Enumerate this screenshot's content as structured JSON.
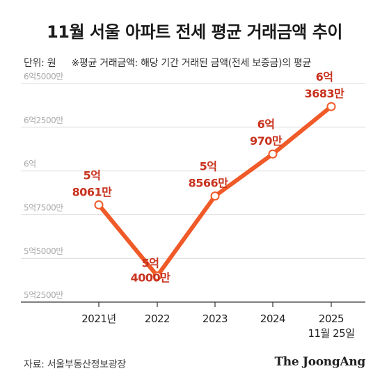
{
  "title": "11월 서울 아파트 전세 평균 거래금액 추이",
  "note": {
    "unit": "단위: 원",
    "definition": "※평균 거래금액: 해당 기간 거래된 금액(전세 보증금)의 평균"
  },
  "source": "자료: 서울부동산정보광장",
  "logo": "The JoongAng",
  "colors": {
    "line": "#f05a28",
    "label": "#c8321e",
    "grid": "#d9d9d9",
    "tick": "#aaaaaa"
  },
  "chart_data": {
    "type": "line",
    "categories": [
      "2021년",
      "2022",
      "2023",
      "2024",
      "2025"
    ],
    "x_sublabel": {
      "index": 4,
      "text": "11월 25일"
    },
    "values": [
      580610000,
      540000000,
      585660000,
      609700000,
      636830000
    ],
    "data_labels": [
      [
        "5억",
        "8061만"
      ],
      [
        "5억",
        "4000만"
      ],
      [
        "5억",
        "8566만"
      ],
      [
        "6억",
        "970만"
      ],
      [
        "6억",
        "3683만"
      ]
    ],
    "label_positions": [
      "above",
      "below",
      "above",
      "above",
      "above"
    ],
    "yticks": [
      {
        "value": 525000000,
        "label": "5억2500만"
      },
      {
        "value": 550000000,
        "label": "5억5000만"
      },
      {
        "value": 575000000,
        "label": "5억7500만"
      },
      {
        "value": 600000000,
        "label": "6억"
      },
      {
        "value": 625000000,
        "label": "6억2500만"
      },
      {
        "value": 650000000,
        "label": "6억5000만"
      }
    ],
    "ylim": [
      525000000,
      650000000
    ],
    "grid": true,
    "legend": "none"
  }
}
